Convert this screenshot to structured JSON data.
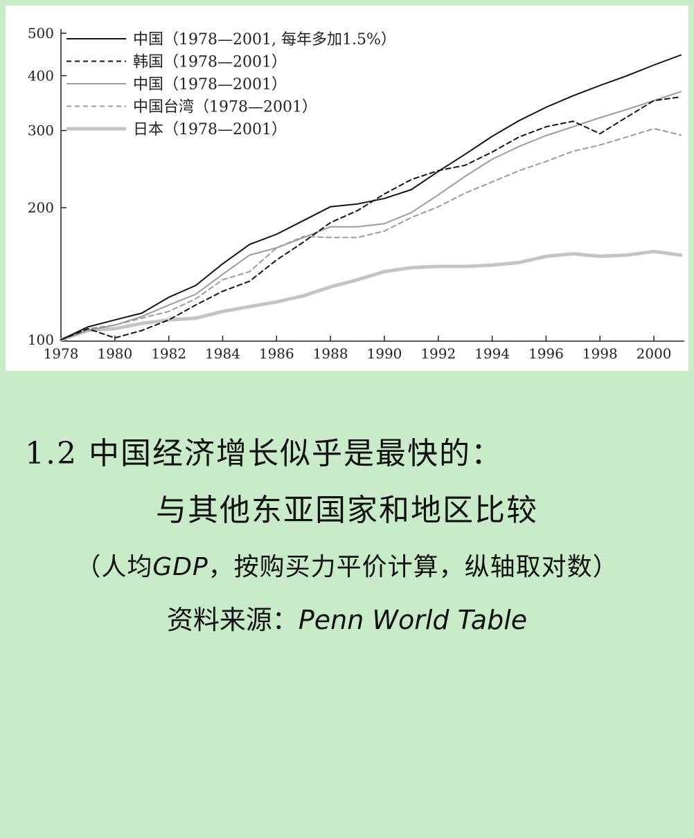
{
  "chart_data": {
    "type": "line",
    "title": "",
    "xlabel": "",
    "ylabel": "",
    "y_scale": "log",
    "xlim": [
      1978,
      2001
    ],
    "ylim": [
      100,
      500
    ],
    "x_ticks": [
      "1978",
      "1980",
      "1982",
      "1984",
      "1986",
      "1988",
      "1990",
      "1992",
      "1994",
      "1996",
      "1998",
      "2000"
    ],
    "y_ticks": [
      "100",
      "200",
      "300",
      "400",
      "500"
    ],
    "legend_position": "top-left",
    "x": [
      1978,
      1979,
      1980,
      1981,
      1982,
      1983,
      1984,
      1985,
      1986,
      1987,
      1988,
      1989,
      1990,
      1991,
      1992,
      1993,
      1994,
      1995,
      1996,
      1997,
      1998,
      1999,
      2000,
      2001
    ],
    "series": [
      {
        "name": "中国（1978—2001, 每年多加1.5%）",
        "style": "solid",
        "color": "#111111",
        "width": 2,
        "values": [
          100,
          107,
          111,
          115,
          125,
          133,
          149,
          165,
          174,
          187,
          201,
          204,
          210,
          220,
          242,
          265,
          291,
          316,
          339,
          360,
          380,
          400,
          423,
          446
        ]
      },
      {
        "name": "韩国（1978—2001）",
        "style": "dashed",
        "color": "#111111",
        "width": 2,
        "values": [
          100,
          106,
          101,
          105,
          111,
          120,
          129,
          136,
          152,
          167,
          185,
          197,
          215,
          232,
          243,
          250,
          268,
          290,
          306,
          315,
          295,
          322,
          351,
          358
        ]
      },
      {
        "name": "中国（1978—2001）",
        "style": "solid",
        "color": "#9a9a9a",
        "width": 2,
        "values": [
          100,
          105,
          108,
          113,
          120,
          127,
          141,
          156,
          162,
          171,
          181,
          181,
          184,
          195,
          214,
          236,
          258,
          276,
          292,
          306,
          321,
          335,
          351,
          368
        ]
      },
      {
        "name": "中国台湾（1978—2001）",
        "style": "dashed",
        "color": "#9a9a9a",
        "width": 2,
        "values": [
          100,
          106,
          108,
          112,
          116,
          124,
          137,
          143,
          162,
          172,
          171,
          171,
          177,
          190,
          201,
          216,
          229,
          243,
          255,
          269,
          278,
          290,
          303,
          293
        ]
      },
      {
        "name": "日本（1978—2001）",
        "style": "solid",
        "color": "#c4c4c4",
        "width": 5,
        "values": [
          100,
          105,
          106,
          109,
          111,
          112,
          116,
          119,
          122,
          126,
          132,
          137,
          143,
          146,
          147,
          147,
          148,
          150,
          155,
          157,
          155,
          156,
          159,
          156
        ]
      }
    ]
  },
  "caption": {
    "title_line1": "1.2 中国经济增长似乎是最快的：",
    "title_line2": "与其他东亚国家和地区比较",
    "note_open": "（人均",
    "note_gdp": "GDP",
    "note_rest": "，按购买力平价计算，纵轴取对数）",
    "source_label": "资料来源：",
    "source_value": "Penn World Table"
  }
}
